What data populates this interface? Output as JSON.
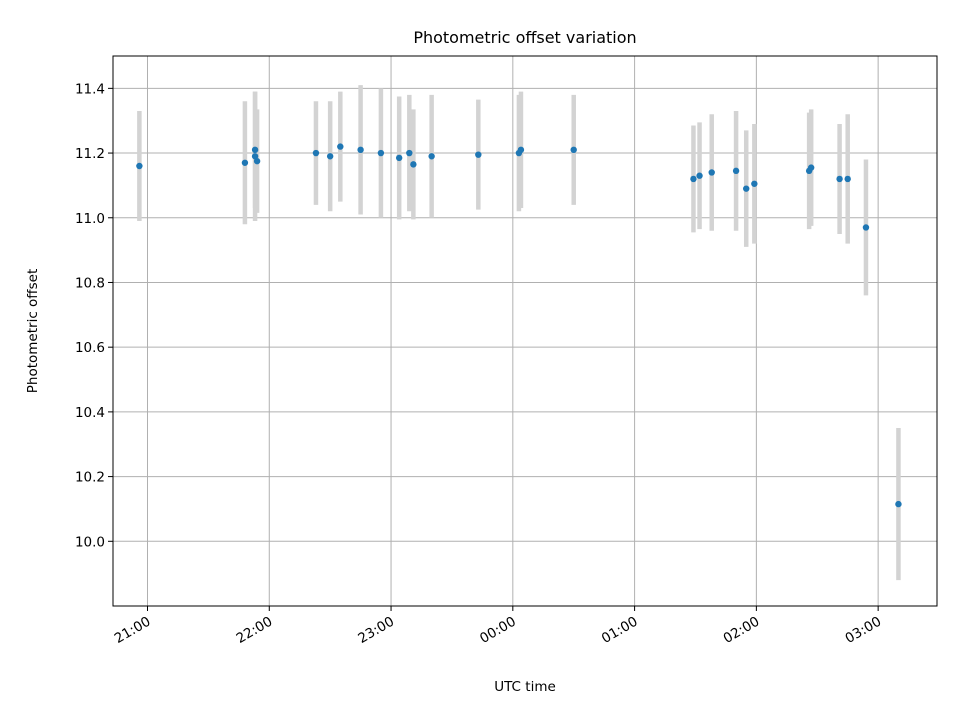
{
  "chart_data": {
    "type": "scatter",
    "title": "Photometric offset variation",
    "xlabel": "UTC time",
    "ylabel": "Photometric offset",
    "x_ticks": [
      "21:00",
      "22:00",
      "23:00",
      "00:00",
      "01:00",
      "02:00",
      "03:00"
    ],
    "y_ticks": [
      "10.0",
      "10.2",
      "10.4",
      "10.6",
      "10.8",
      "11.0",
      "11.2",
      "11.4"
    ],
    "xlim": [
      "20:43",
      "03:29"
    ],
    "ylim": [
      9.8,
      11.5
    ],
    "grid": true,
    "colors": {
      "point": "#1f77b4",
      "errorbar": "#d3d3d3",
      "grid": "#b0b0b0"
    },
    "series": [
      {
        "points": [
          {
            "x": "20:56",
            "y": 11.16,
            "err": 0.17
          },
          {
            "x": "21:48",
            "y": 11.17,
            "err": 0.19
          },
          {
            "x": "21:53",
            "y": 11.19,
            "err": 0.2
          },
          {
            "x": "21:53",
            "y": 11.21,
            "err": 0.18
          },
          {
            "x": "21:54",
            "y": 11.175,
            "err": 0.16
          },
          {
            "x": "22:23",
            "y": 11.2,
            "err": 0.16
          },
          {
            "x": "22:30",
            "y": 11.19,
            "err": 0.17
          },
          {
            "x": "22:35",
            "y": 11.22,
            "err": 0.17
          },
          {
            "x": "22:45",
            "y": 11.21,
            "err": 0.2
          },
          {
            "x": "22:55",
            "y": 11.2,
            "err": 0.2
          },
          {
            "x": "23:04",
            "y": 11.185,
            "err": 0.19
          },
          {
            "x": "23:09",
            "y": 11.2,
            "err": 0.18
          },
          {
            "x": "23:11",
            "y": 11.165,
            "err": 0.17
          },
          {
            "x": "23:20",
            "y": 11.19,
            "err": 0.19
          },
          {
            "x": "23:43",
            "y": 11.195,
            "err": 0.17
          },
          {
            "x": "00:03",
            "y": 11.2,
            "err": 0.18
          },
          {
            "x": "00:04",
            "y": 11.21,
            "err": 0.18
          },
          {
            "x": "00:30",
            "y": 11.21,
            "err": 0.17
          },
          {
            "x": "01:29",
            "y": 11.12,
            "err": 0.165
          },
          {
            "x": "01:32",
            "y": 11.13,
            "err": 0.165
          },
          {
            "x": "01:38",
            "y": 11.14,
            "err": 0.18
          },
          {
            "x": "01:50",
            "y": 11.145,
            "err": 0.185
          },
          {
            "x": "01:55",
            "y": 11.09,
            "err": 0.18
          },
          {
            "x": "01:59",
            "y": 11.105,
            "err": 0.185
          },
          {
            "x": "02:26",
            "y": 11.145,
            "err": 0.18
          },
          {
            "x": "02:27",
            "y": 11.155,
            "err": 0.18
          },
          {
            "x": "02:41",
            "y": 11.12,
            "err": 0.17
          },
          {
            "x": "02:45",
            "y": 11.12,
            "err": 0.2
          },
          {
            "x": "02:54",
            "y": 10.97,
            "err": 0.21
          },
          {
            "x": "03:10",
            "y": 10.115,
            "err": 0.235
          }
        ]
      }
    ]
  }
}
